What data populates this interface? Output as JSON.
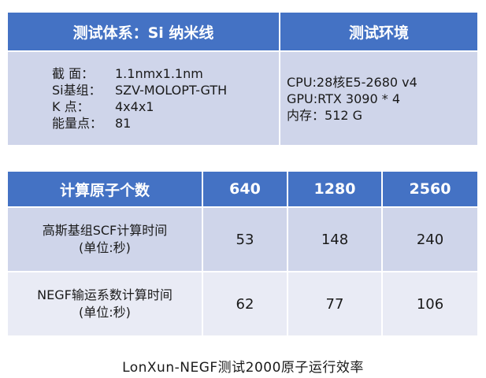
{
  "test_table": {
    "header_left": "测试体系：Si 纳米线",
    "header_right": "测试环境",
    "specs": [
      {
        "label": "截  面：",
        "value": "1.1nmx1.1nm"
      },
      {
        "label": "Si基组：",
        "value": "SZV-MOLOPT-GTH"
      },
      {
        "label": "K  点：",
        "value": "4x4x1"
      },
      {
        "label": "能量点：",
        "value": "81"
      }
    ],
    "env": [
      {
        "label": "CPU: ",
        "value": "28核E5-2680 v4"
      },
      {
        "label": "GPU: ",
        "value": "RTX 3090 * 4"
      },
      {
        "label": "内存：",
        "value": "512 G"
      }
    ]
  },
  "result_table": {
    "col_header": "计算原子个数",
    "atom_counts": [
      "640",
      "1280",
      "2560"
    ],
    "rows": [
      {
        "label_line1": "高斯基组SCF计算时间",
        "label_line2": "(单位:秒)",
        "values": [
          "53",
          "148",
          "240"
        ]
      },
      {
        "label_line1": "NEGF输运系数计算时间",
        "label_line2": "(单位:秒)",
        "values": [
          "62",
          "77",
          "106"
        ]
      }
    ]
  },
  "caption": "LonXun-NEGF测试2000原子运行效率"
}
